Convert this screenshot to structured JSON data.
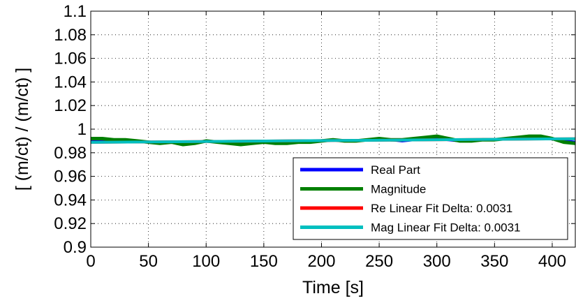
{
  "chart_data": {
    "type": "line",
    "xlabel": "Time [s]",
    "ylabel": "[ (m/ct) / (m/ct) ]",
    "xlim": [
      0,
      420
    ],
    "ylim": [
      0.9,
      1.1
    ],
    "xticks": [
      0,
      50,
      100,
      150,
      200,
      250,
      300,
      350,
      400
    ],
    "yticks": [
      0.9,
      0.92,
      0.94,
      0.96,
      0.98,
      1,
      1.02,
      1.04,
      1.06,
      1.08,
      1.1
    ],
    "xtick_labels": [
      "0",
      "50",
      "100",
      "150",
      "200",
      "250",
      "300",
      "350",
      "400"
    ],
    "ytick_labels": [
      "0.9",
      "0.92",
      "0.94",
      "0.96",
      "0.98",
      "1",
      "1.02",
      "1.04",
      "1.06",
      "1.08",
      "1.1"
    ],
    "grid": true,
    "legend_position": "bottom-right",
    "series": [
      {
        "name": "Real Part",
        "color": "#0000ff",
        "x": [
          0,
          10,
          20,
          30,
          40,
          50,
          60,
          70,
          80,
          90,
          100,
          110,
          120,
          130,
          140,
          150,
          160,
          170,
          180,
          190,
          200,
          210,
          220,
          230,
          240,
          250,
          260,
          270,
          280,
          290,
          300,
          310,
          320,
          330,
          340,
          350,
          360,
          370,
          380,
          390,
          400,
          410,
          420
        ],
        "y": [
          0.99,
          0.991,
          0.99,
          0.99,
          0.99,
          0.989,
          0.988,
          0.989,
          0.988,
          0.988,
          0.99,
          0.989,
          0.988,
          0.988,
          0.989,
          0.989,
          0.989,
          0.989,
          0.99,
          0.99,
          0.99,
          0.991,
          0.99,
          0.99,
          0.991,
          0.991,
          0.991,
          0.99,
          0.991,
          0.992,
          0.992,
          0.991,
          0.99,
          0.99,
          0.991,
          0.991,
          0.992,
          0.992,
          0.992,
          0.992,
          0.992,
          0.99,
          0.989
        ]
      },
      {
        "name": "Magnitude",
        "color": "#007f00",
        "x": [
          0,
          10,
          20,
          30,
          40,
          50,
          60,
          70,
          80,
          90,
          100,
          110,
          120,
          130,
          140,
          150,
          160,
          170,
          180,
          190,
          200,
          210,
          220,
          230,
          240,
          250,
          260,
          270,
          280,
          290,
          300,
          310,
          320,
          330,
          340,
          350,
          360,
          370,
          380,
          390,
          400,
          410,
          420
        ],
        "y": [
          0.992,
          0.992,
          0.991,
          0.991,
          0.99,
          0.989,
          0.988,
          0.989,
          0.987,
          0.988,
          0.99,
          0.989,
          0.988,
          0.987,
          0.988,
          0.989,
          0.988,
          0.988,
          0.989,
          0.989,
          0.99,
          0.991,
          0.99,
          0.99,
          0.991,
          0.992,
          0.991,
          0.991,
          0.992,
          0.993,
          0.994,
          0.992,
          0.99,
          0.99,
          0.991,
          0.991,
          0.992,
          0.993,
          0.994,
          0.994,
          0.992,
          0.989,
          0.988
        ]
      },
      {
        "name": "Re Linear Fit Delta: 0.0031",
        "color": "#ff0000",
        "x": [
          0,
          420
        ],
        "y": [
          0.9888,
          0.9919
        ]
      },
      {
        "name": "Mag Linear Fit Delta: 0.0031",
        "color": "#00bfbf",
        "x": [
          0,
          420
        ],
        "y": [
          0.9888,
          0.9919
        ]
      }
    ]
  }
}
